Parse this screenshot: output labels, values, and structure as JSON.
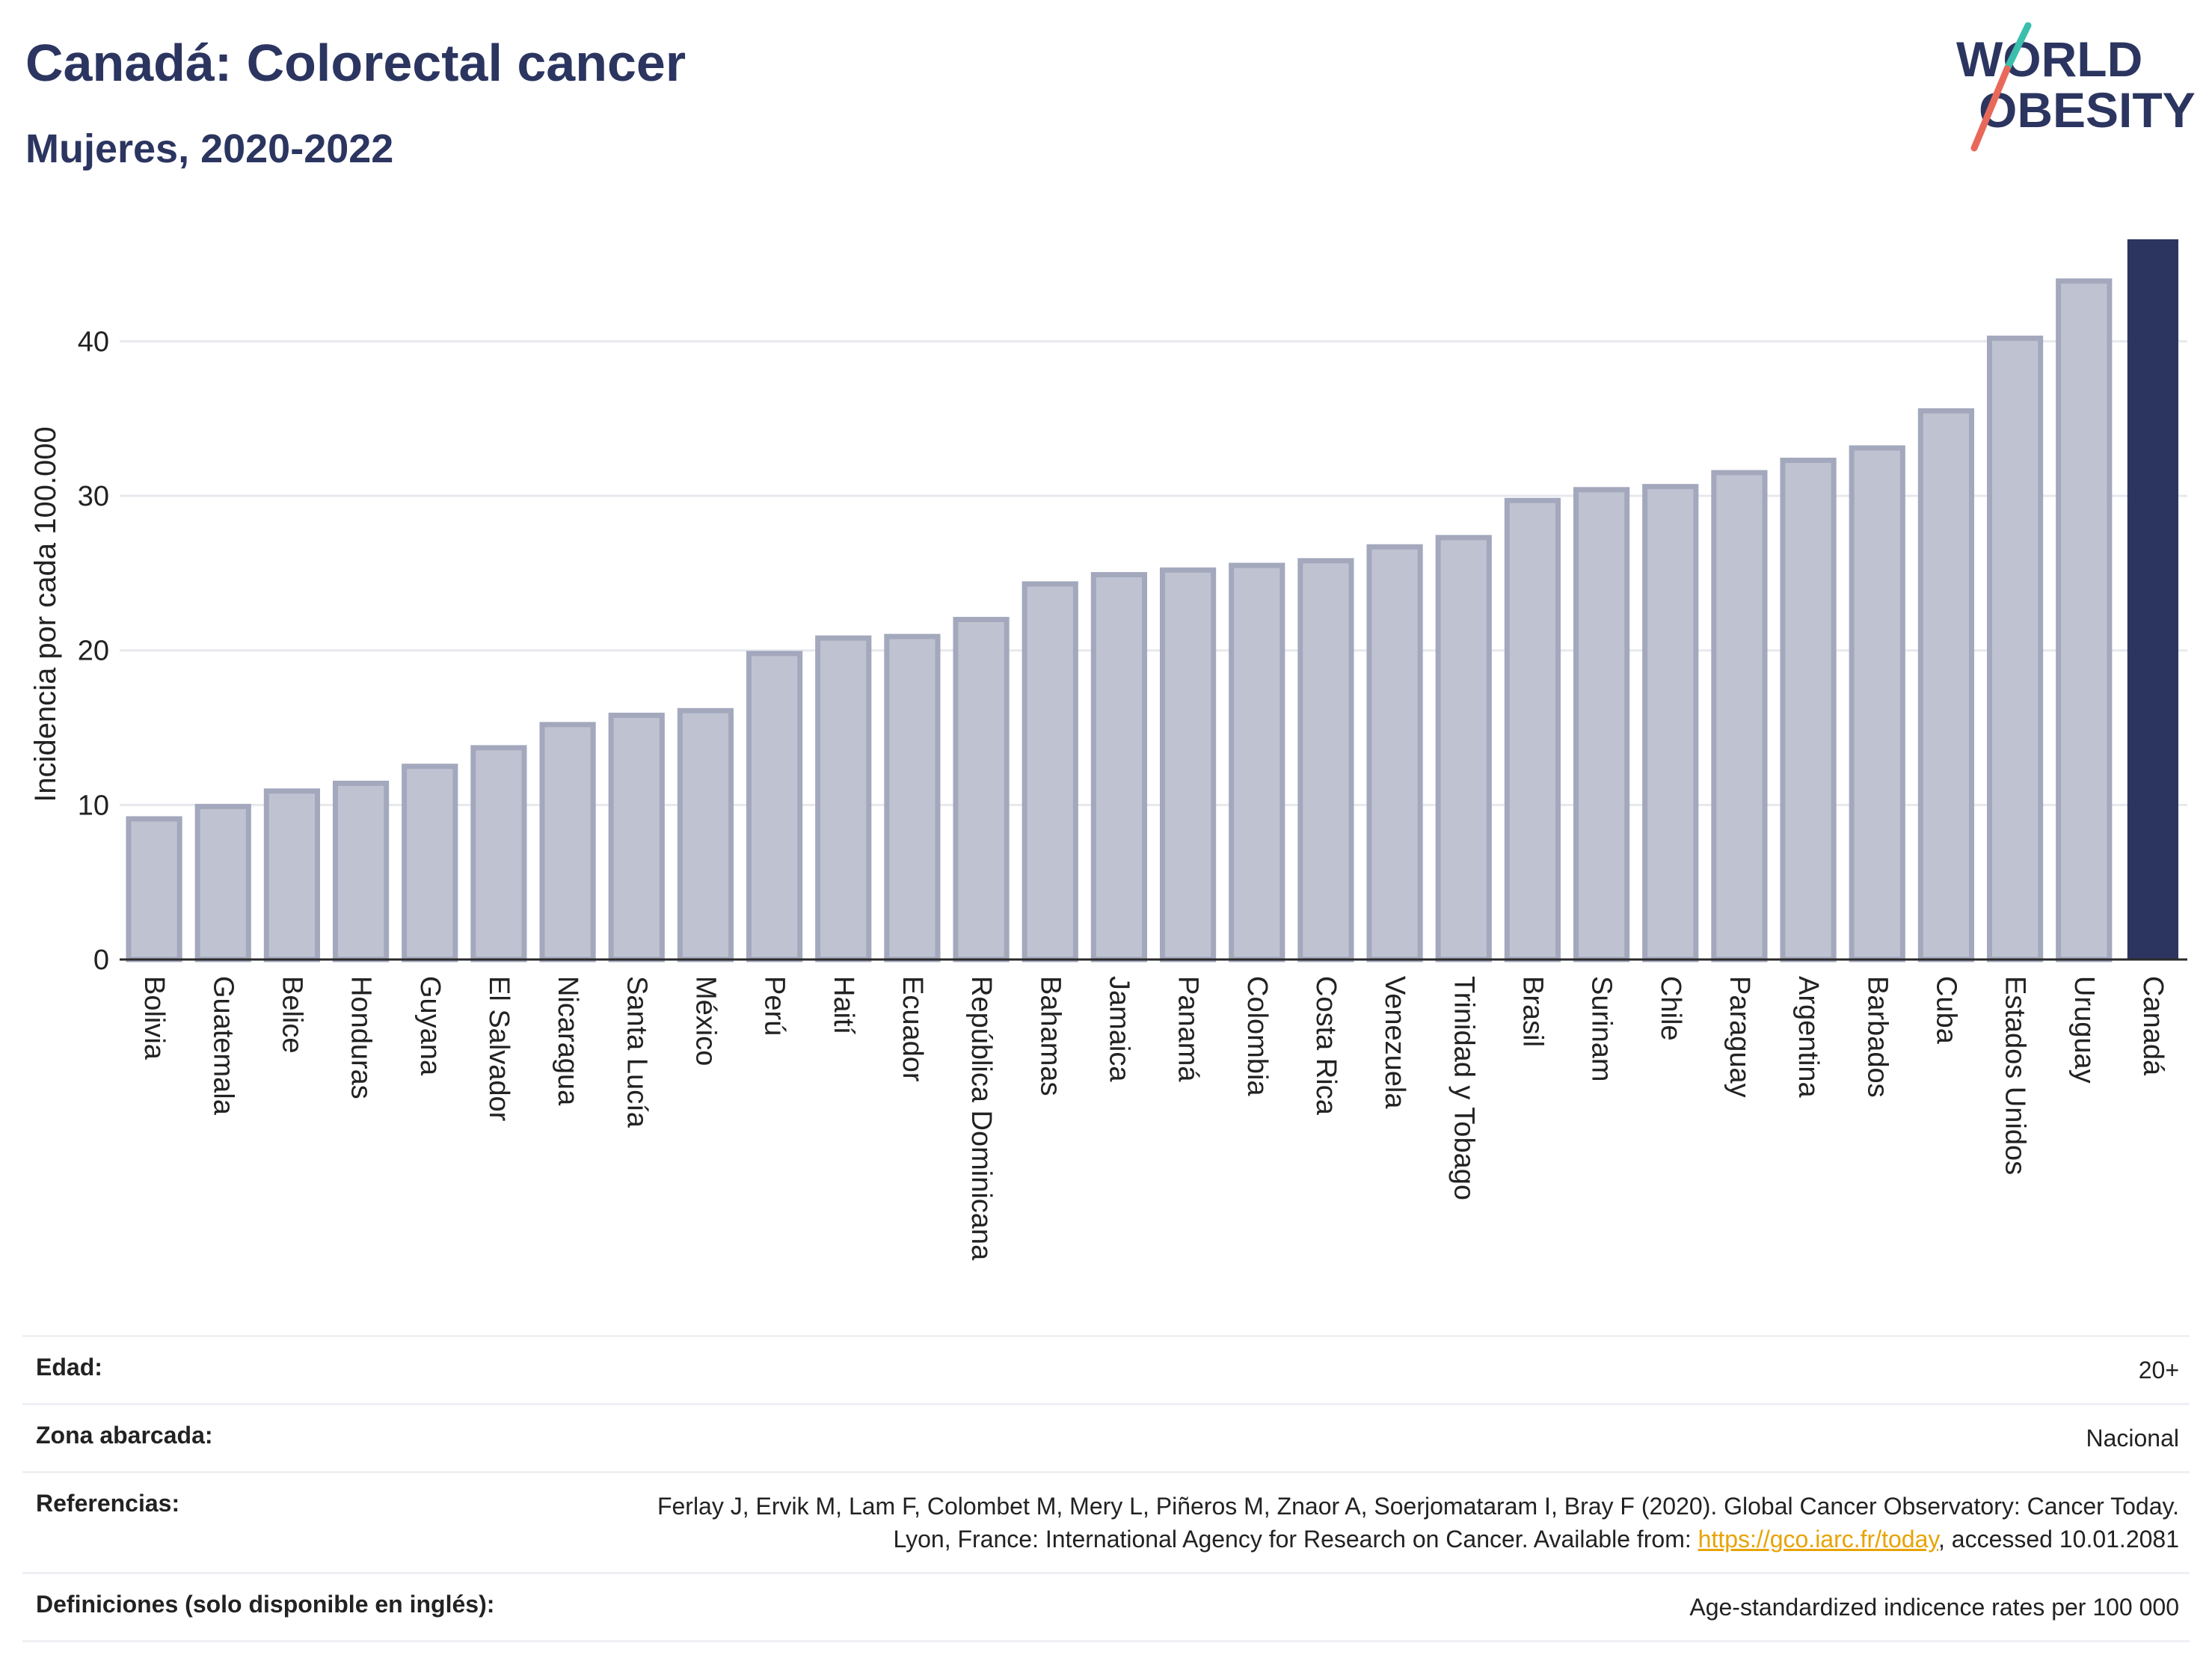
{
  "header": {
    "title": "Canadá: Colorectal cancer",
    "subtitle": "Mujeres, 2020-2022"
  },
  "logo": {
    "line1": "WORLD",
    "line2": "OBESITY"
  },
  "colors": {
    "highlight": "#2b3560",
    "bar_fill": "#bfc3d1",
    "bar_stroke": "#a3a8bd",
    "title": "#2b3560",
    "logo_teal": "#3bbfad",
    "logo_red": "#e8695a",
    "link": "#e8a300"
  },
  "chart_data": {
    "type": "bar",
    "ylabel": "Incidencia por cada 100.000",
    "ylim": [
      0,
      46.6
    ],
    "yticks": [
      0,
      10,
      20,
      30,
      40
    ],
    "grid": true,
    "highlight": "Canadá",
    "categories": [
      "Bolivia",
      "Guatemala",
      "Belice",
      "Honduras",
      "Guyana",
      "El Salvador",
      "Nicaragua",
      "Santa Lucía",
      "México",
      "Perú",
      "Haití",
      "Ecuador",
      "República Dominicana",
      "Bahamas",
      "Jamaica",
      "Panamá",
      "Colombia",
      "Costa Rica",
      "Venezuela",
      "Trinidad y Tobago",
      "Brasil",
      "Surinam",
      "Chile",
      "Paraguay",
      "Argentina",
      "Barbados",
      "Cuba",
      "Estados Unidos",
      "Uruguay",
      "Canadá"
    ],
    "values": [
      9.1,
      9.9,
      10.9,
      11.4,
      12.5,
      13.7,
      15.2,
      15.8,
      16.1,
      19.8,
      20.8,
      20.9,
      22.0,
      24.3,
      24.9,
      25.2,
      25.5,
      25.8,
      26.7,
      27.3,
      29.7,
      30.4,
      30.6,
      31.5,
      32.3,
      33.1,
      35.5,
      40.2,
      43.9,
      46.6
    ]
  },
  "info": {
    "rows": [
      {
        "label": "Edad:",
        "value": "20+"
      },
      {
        "label": "Zona abarcada:",
        "value": "Nacional"
      },
      {
        "label": "Referencias:",
        "value_before": "Ferlay J, Ervik M, Lam F, Colombet M, Mery L, Piñeros M, Znaor A, Soerjomataram I, Bray F (2020). Global Cancer Observatory: Cancer Today. Lyon, France: International Agency for Research on Cancer. Available from: ",
        "link": "https://gco.iarc.fr/today",
        "value_after": ", accessed 10.01.2081"
      },
      {
        "label": "Definiciones (solo disponible en inglés):",
        "value": "Age-standardized indicence rates per 100 000"
      }
    ]
  }
}
